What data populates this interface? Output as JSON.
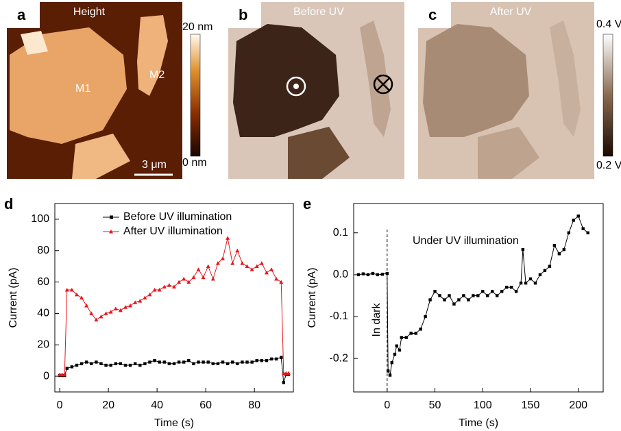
{
  "panels": [
    {
      "letter": "a",
      "title": "Height",
      "labels": [
        "M1",
        "M2"
      ],
      "scale_bar": "3 μm",
      "colorbar": {
        "max": "20 nm",
        "min": "0 nm"
      }
    },
    {
      "letter": "b",
      "title": "Before UV"
    },
    {
      "letter": "c",
      "title": "After UV",
      "colorbar": {
        "max": "0.4 V",
        "min": "0.2 V"
      }
    }
  ],
  "chart_data": [
    {
      "type": "line",
      "letter": "d",
      "xlabel": "Time (s)",
      "ylabel": "Current (pA)",
      "xlim": [
        -2,
        96
      ],
      "ylim": [
        -10,
        110
      ],
      "xticks": [
        0,
        20,
        40,
        60,
        80
      ],
      "yticks": [
        0,
        20,
        40,
        60,
        80,
        100
      ],
      "legend": "top",
      "x": [
        0,
        1,
        2,
        3,
        5,
        7,
        9,
        11,
        13,
        15,
        17,
        19,
        21,
        23,
        25,
        27,
        29,
        31,
        33,
        35,
        37,
        39,
        41,
        43,
        45,
        47,
        49,
        51,
        53,
        55,
        57,
        59,
        61,
        63,
        65,
        67,
        69,
        71,
        73,
        75,
        77,
        79,
        81,
        83,
        85,
        87,
        89,
        91,
        92,
        93,
        94
      ],
      "series": [
        {
          "name": "Before UV illumination",
          "color": "#000000",
          "marker": "square",
          "values": [
            0.5,
            0.5,
            0.5,
            5,
            6,
            7,
            8,
            9,
            8,
            9,
            8,
            7,
            7,
            8,
            8,
            7,
            7,
            8,
            7,
            8,
            9,
            10,
            9,
            9,
            8,
            8,
            9,
            9,
            10,
            8,
            9,
            9,
            9,
            8,
            8,
            9,
            8,
            9,
            8,
            9,
            9,
            9,
            10,
            10,
            10,
            11,
            11,
            12,
            -4,
            1,
            1
          ]
        },
        {
          "name": "After UV illumination",
          "color": "#e8151b",
          "marker": "triangle",
          "values": [
            1,
            1,
            1,
            55,
            55,
            52,
            50,
            45,
            40,
            36,
            38,
            40,
            41,
            43,
            42,
            44,
            45,
            47,
            48,
            50,
            52,
            55,
            55,
            57,
            58,
            57,
            60,
            62,
            60,
            63,
            68,
            63,
            70,
            62,
            72,
            75,
            88,
            72,
            80,
            72,
            70,
            68,
            70,
            72,
            66,
            68,
            62,
            60,
            2,
            2,
            2
          ]
        }
      ]
    },
    {
      "type": "line",
      "letter": "e",
      "xlabel": "Time (s)",
      "ylabel": "Current (pA)",
      "xlim": [
        -35,
        226
      ],
      "ylim": [
        -0.28,
        0.17
      ],
      "xticks": [
        0,
        50,
        100,
        150,
        200
      ],
      "yticks": [
        -0.2,
        -0.1,
        {
          "value": 0,
          "label": "0.0"
        },
        0.1
      ],
      "annotations": [
        "In dark",
        "Under UV illumination"
      ],
      "x": [
        -30,
        -25,
        -20,
        -15,
        -10,
        -5,
        0,
        1,
        3,
        5,
        8,
        10,
        13,
        15,
        20,
        25,
        30,
        35,
        40,
        45,
        50,
        55,
        60,
        65,
        70,
        75,
        80,
        85,
        90,
        95,
        100,
        105,
        110,
        115,
        120,
        125,
        130,
        135,
        140,
        142,
        145,
        150,
        155,
        160,
        165,
        170,
        175,
        180,
        185,
        190,
        195,
        200,
        205,
        210
      ],
      "series": [
        {
          "color": "#000000",
          "marker": "square",
          "values": [
            0.0,
            0.002,
            0.0,
            0.003,
            0.0,
            0.001,
            0.003,
            -0.23,
            -0.24,
            -0.21,
            -0.19,
            -0.17,
            -0.18,
            -0.15,
            -0.15,
            -0.14,
            -0.14,
            -0.13,
            -0.1,
            -0.06,
            -0.04,
            -0.05,
            -0.06,
            -0.05,
            -0.07,
            -0.06,
            -0.05,
            -0.06,
            -0.05,
            -0.05,
            -0.04,
            -0.05,
            -0.04,
            -0.05,
            -0.04,
            -0.03,
            -0.03,
            -0.04,
            -0.02,
            0.06,
            -0.02,
            -0.01,
            -0.02,
            0.0,
            0.01,
            0.02,
            0.07,
            0.05,
            0.06,
            0.1,
            0.13,
            0.14,
            0.11,
            0.1
          ]
        }
      ]
    }
  ]
}
